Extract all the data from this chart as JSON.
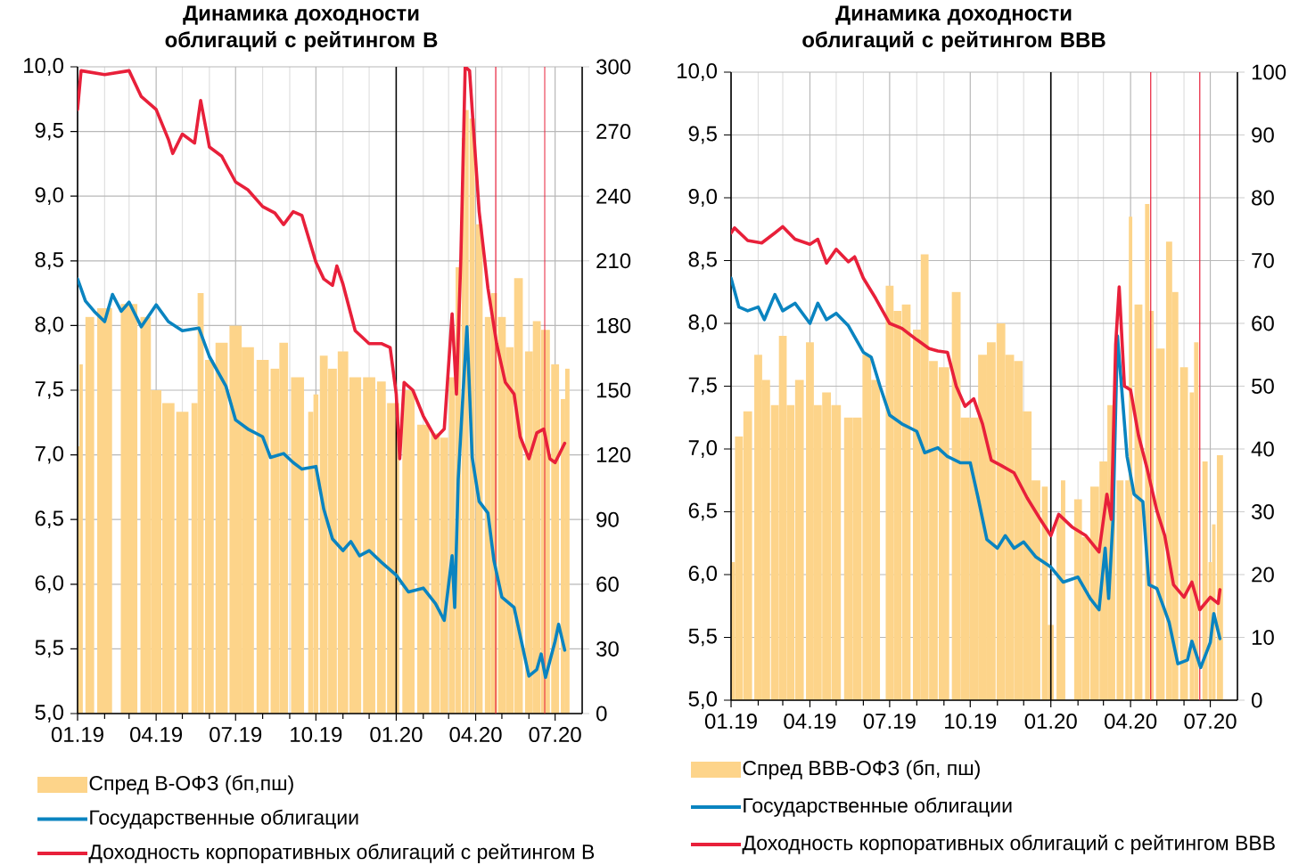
{
  "chart_data": [
    {
      "type": "line",
      "title": "Динамика доходности облигаций с рейтингом B",
      "legend": "bottom",
      "grid": true,
      "xlim": [
        "2019-01-01",
        "2020-08-01"
      ],
      "ylim": [
        5,
        10
      ],
      "y2lim": [
        0,
        300
      ],
      "xticks": [
        {
          "value": "2019-01-01",
          "label": "01.19"
        },
        {
          "value": "2019-02-01",
          "label": null
        },
        {
          "value": "2019-03-01",
          "label": null
        },
        {
          "value": "2019-04-01",
          "label": "04.19"
        },
        {
          "value": "2019-05-01",
          "label": null
        },
        {
          "value": "2019-06-01",
          "label": null
        },
        {
          "value": "2019-07-01",
          "label": "07.19"
        },
        {
          "value": "2019-08-01",
          "label": null
        },
        {
          "value": "2019-09-01",
          "label": null
        },
        {
          "value": "2019-10-01",
          "label": "10.19"
        },
        {
          "value": "2019-11-01",
          "label": null
        },
        {
          "value": "2019-12-01",
          "label": null
        },
        {
          "value": "2020-01-01",
          "label": "01.20"
        },
        {
          "value": "2020-02-01",
          "label": null
        },
        {
          "value": "2020-03-01",
          "label": null
        },
        {
          "value": "2020-04-01",
          "label": "04.20"
        },
        {
          "value": "2020-05-01",
          "label": null
        },
        {
          "value": "2020-06-01",
          "label": null
        },
        {
          "value": "2020-07-01",
          "label": "07.20"
        }
      ],
      "yticks": [
        {
          "value": 5,
          "label": "5,0"
        },
        {
          "value": 5.5,
          "label": "5,5"
        },
        {
          "value": 6,
          "label": "6,0"
        },
        {
          "value": 6.5,
          "label": "6,5"
        },
        {
          "value": 7,
          "label": "7,0"
        },
        {
          "value": 7.5,
          "label": "7,5"
        },
        {
          "value": 8,
          "label": "8,0"
        },
        {
          "value": 8.5,
          "label": "8,5"
        },
        {
          "value": 9,
          "label": "9,0"
        },
        {
          "value": 9.5,
          "label": "9,5"
        },
        {
          "value": 10,
          "label": "10,0"
        }
      ],
      "y2ticks": [
        0,
        30,
        60,
        90,
        120,
        150,
        180,
        210,
        240,
        270,
        300
      ],
      "ref_lines": [
        {
          "axis": "x",
          "value": "2020-01-01",
          "color": "#000000"
        },
        {
          "axis": "x",
          "value": "2020-04-24",
          "color": "#e8203a"
        },
        {
          "axis": "x",
          "value": "2020-06-19",
          "color": "#e8203a"
        }
      ],
      "series": [
        {
          "name": "Спред B-ОФЗ (бп,пш)",
          "type": "bar",
          "axis": "y2",
          "color": "#fdd48a",
          "x": [
            "2019-01-01",
            "2019-01-05",
            "2019-01-15",
            "2019-02-01",
            "2019-03-01",
            "2019-03-20",
            "2019-04-01",
            "2019-04-15",
            "2019-05-01",
            "2019-05-15",
            "2019-05-22",
            "2019-06-01",
            "2019-06-15",
            "2019-07-01",
            "2019-07-15",
            "2019-08-01",
            "2019-08-15",
            "2019-08-25",
            "2019-09-10",
            "2019-09-25",
            "2019-10-01",
            "2019-10-10",
            "2019-10-20",
            "2019-11-01",
            "2019-11-15",
            "2019-12-01",
            "2019-12-15",
            "2019-12-25",
            "2020-01-01",
            "2020-01-15",
            "2020-02-01",
            "2020-02-15",
            "2020-02-25",
            "2020-03-05",
            "2020-03-12",
            "2020-03-18",
            "2020-03-22",
            "2020-03-28",
            "2020-04-05",
            "2020-04-15",
            "2020-04-22",
            "2020-05-01",
            "2020-05-10",
            "2020-05-20",
            "2020-06-01",
            "2020-06-10",
            "2020-06-20",
            "2020-07-01",
            "2020-07-10",
            "2020-07-15"
          ],
          "values": [
            124,
            162,
            184,
            188,
            190,
            184,
            150,
            144,
            140,
            144,
            195,
            164,
            172,
            180,
            170,
            164,
            160,
            172,
            156,
            140,
            148,
            166,
            160,
            168,
            156,
            156,
            154,
            144,
            144,
            150,
            134,
            130,
            128,
            156,
            207,
            267,
            280,
            276,
            227,
            184,
            195,
            184,
            170,
            202,
            168,
            182,
            178,
            162,
            146,
            160
          ]
        },
        {
          "name": "Государственные облигации",
          "color": "#0a84c0",
          "x": [
            "2019-01-01",
            "2019-01-10",
            "2019-01-20",
            "2019-02-01",
            "2019-02-10",
            "2019-02-20",
            "2019-03-01",
            "2019-03-15",
            "2019-04-01",
            "2019-04-15",
            "2019-05-01",
            "2019-05-20",
            "2019-06-01",
            "2019-06-20",
            "2019-07-01",
            "2019-07-15",
            "2019-08-01",
            "2019-08-10",
            "2019-08-25",
            "2019-09-05",
            "2019-09-15",
            "2019-10-01",
            "2019-10-10",
            "2019-10-20",
            "2019-11-01",
            "2019-11-10",
            "2019-11-20",
            "2019-12-01",
            "2019-12-15",
            "2020-01-01",
            "2020-01-15",
            "2020-02-01",
            "2020-02-15",
            "2020-02-25",
            "2020-03-05",
            "2020-03-08",
            "2020-03-12",
            "2020-03-18",
            "2020-03-22",
            "2020-03-28",
            "2020-04-05",
            "2020-04-15",
            "2020-04-22",
            "2020-05-01",
            "2020-05-15",
            "2020-06-01",
            "2020-06-10",
            "2020-06-15",
            "2020-06-20",
            "2020-07-01",
            "2020-07-05",
            "2020-07-12"
          ],
          "values": [
            8.36,
            8.19,
            8.11,
            8.03,
            8.24,
            8.11,
            8.18,
            7.99,
            8.16,
            8.03,
            7.96,
            7.98,
            7.76,
            7.53,
            7.27,
            7.2,
            7.14,
            6.98,
            7.01,
            6.94,
            6.89,
            6.91,
            6.58,
            6.35,
            6.26,
            6.33,
            6.22,
            6.26,
            6.17,
            6.07,
            5.94,
            5.97,
            5.85,
            5.72,
            6.22,
            5.82,
            6.81,
            7.53,
            7.99,
            6.98,
            6.64,
            6.55,
            6.18,
            5.9,
            5.82,
            5.29,
            5.34,
            5.46,
            5.28,
            5.56,
            5.69,
            5.49
          ]
        },
        {
          "name": "Доходность корпоративных облигаций с рейтингом B",
          "color": "#e8203a",
          "x": [
            "2019-01-01",
            "2019-01-05",
            "2019-02-01",
            "2019-03-01",
            "2019-03-15",
            "2019-04-01",
            "2019-04-15",
            "2019-04-20",
            "2019-05-01",
            "2019-05-15",
            "2019-05-22",
            "2019-06-01",
            "2019-06-15",
            "2019-07-01",
            "2019-07-15",
            "2019-08-01",
            "2019-08-15",
            "2019-08-25",
            "2019-09-05",
            "2019-09-15",
            "2019-10-01",
            "2019-10-10",
            "2019-10-20",
            "2019-10-25",
            "2019-11-01",
            "2019-11-15",
            "2019-12-01",
            "2019-12-15",
            "2019-12-25",
            "2020-01-01",
            "2020-01-05",
            "2020-01-10",
            "2020-01-20",
            "2020-02-01",
            "2020-02-15",
            "2020-02-25",
            "2020-03-05",
            "2020-03-10",
            "2020-03-15",
            "2020-03-20",
            "2020-03-25",
            "2020-03-28",
            "2020-04-05",
            "2020-04-15",
            "2020-04-25",
            "2020-05-05",
            "2020-05-15",
            "2020-05-22",
            "2020-06-01",
            "2020-06-10",
            "2020-06-18",
            "2020-06-25",
            "2020-07-01",
            "2020-07-12"
          ],
          "values": [
            9.67,
            9.97,
            9.94,
            9.97,
            9.77,
            9.67,
            9.44,
            9.33,
            9.48,
            9.41,
            9.74,
            9.38,
            9.31,
            9.11,
            9.05,
            8.92,
            8.87,
            8.78,
            8.88,
            8.85,
            8.49,
            8.36,
            8.31,
            8.46,
            8.32,
            7.96,
            7.86,
            7.86,
            7.83,
            7.47,
            6.97,
            7.56,
            7.5,
            7.3,
            7.13,
            7.2,
            8.09,
            7.47,
            8.52,
            10.0,
            9.97,
            9.67,
            8.88,
            8.29,
            7.86,
            7.56,
            7.47,
            7.14,
            6.97,
            7.17,
            7.2,
            6.97,
            6.94,
            7.09
          ]
        }
      ]
    },
    {
      "type": "line",
      "title": "Динамика доходности облигаций с рейтингом BBB",
      "legend": "bottom",
      "grid": true,
      "xlim": [
        "2019-01-01",
        "2020-08-01"
      ],
      "ylim": [
        5,
        10
      ],
      "y2lim": [
        0,
        100
      ],
      "xticks": [
        {
          "value": "2019-01-01",
          "label": "01.19"
        },
        {
          "value": "2019-02-01",
          "label": null
        },
        {
          "value": "2019-03-01",
          "label": null
        },
        {
          "value": "2019-04-01",
          "label": "04.19"
        },
        {
          "value": "2019-05-01",
          "label": null
        },
        {
          "value": "2019-06-01",
          "label": null
        },
        {
          "value": "2019-07-01",
          "label": "07.19"
        },
        {
          "value": "2019-08-01",
          "label": null
        },
        {
          "value": "2019-09-01",
          "label": null
        },
        {
          "value": "2019-10-01",
          "label": "10.19"
        },
        {
          "value": "2019-11-01",
          "label": null
        },
        {
          "value": "2019-12-01",
          "label": null
        },
        {
          "value": "2020-01-01",
          "label": "01.20"
        },
        {
          "value": "2020-02-01",
          "label": null
        },
        {
          "value": "2020-03-01",
          "label": null
        },
        {
          "value": "2020-04-01",
          "label": "04.20"
        },
        {
          "value": "2020-05-01",
          "label": null
        },
        {
          "value": "2020-06-01",
          "label": null
        },
        {
          "value": "2020-07-01",
          "label": "07.20"
        }
      ],
      "yticks": [
        {
          "value": 5,
          "label": "5,0"
        },
        {
          "value": 5.5,
          "label": "5,5"
        },
        {
          "value": 6,
          "label": "6,0"
        },
        {
          "value": 6.5,
          "label": "6,5"
        },
        {
          "value": 7,
          "label": "7,0"
        },
        {
          "value": 7.5,
          "label": "7,5"
        },
        {
          "value": 8,
          "label": "8,0"
        },
        {
          "value": 8.5,
          "label": "8,5"
        },
        {
          "value": 9,
          "label": "9,0"
        },
        {
          "value": 9.5,
          "label": "9,5"
        },
        {
          "value": 10,
          "label": "10,0"
        }
      ],
      "y2ticks": [
        0,
        10,
        20,
        30,
        40,
        50,
        60,
        70,
        80,
        90,
        100
      ],
      "ref_lines": [
        {
          "axis": "x",
          "value": "2020-01-01",
          "color": "#000000"
        },
        {
          "axis": "x",
          "value": "2020-04-24",
          "color": "#e8203a"
        },
        {
          "axis": "x",
          "value": "2020-06-19",
          "color": "#e8203a"
        }
      ],
      "series": [
        {
          "name": "Спред BBB-ОФЗ (бп, пш)",
          "type": "bar",
          "axis": "y2",
          "color": "#fdd48a",
          "x": [
            "2019-01-01",
            "2019-01-10",
            "2019-01-20",
            "2019-02-01",
            "2019-02-10",
            "2019-02-20",
            "2019-03-01",
            "2019-03-10",
            "2019-03-20",
            "2019-04-01",
            "2019-04-10",
            "2019-04-20",
            "2019-05-01",
            "2019-05-15",
            "2019-05-25",
            "2019-06-05",
            "2019-06-15",
            "2019-07-01",
            "2019-07-10",
            "2019-07-20",
            "2019-08-01",
            "2019-08-10",
            "2019-08-20",
            "2019-09-01",
            "2019-09-15",
            "2019-09-25",
            "2019-10-05",
            "2019-10-15",
            "2019-10-25",
            "2019-11-05",
            "2019-11-15",
            "2019-11-25",
            "2019-12-05",
            "2019-12-15",
            "2019-12-25",
            "2020-01-01",
            "2020-01-10",
            "2020-01-15",
            "2020-02-01",
            "2020-02-10",
            "2020-02-20",
            "2020-03-01",
            "2020-03-10",
            "2020-03-20",
            "2020-03-28",
            "2020-04-01",
            "2020-04-10",
            "2020-04-20",
            "2020-04-25",
            "2020-05-05",
            "2020-05-15",
            "2020-05-22",
            "2020-06-01",
            "2020-06-10",
            "2020-06-15",
            "2020-06-25",
            "2020-07-01",
            "2020-07-05",
            "2020-07-12"
          ],
          "values": [
            22,
            42,
            46,
            55,
            51,
            47,
            58,
            47,
            51,
            57,
            47,
            49,
            47,
            45,
            45,
            55,
            51,
            66,
            62,
            63,
            59,
            71,
            54,
            53,
            65,
            45,
            45,
            55,
            57,
            60,
            55,
            54,
            46,
            35,
            34,
            12,
            29,
            35,
            32,
            26,
            34,
            38,
            47,
            35,
            35,
            77,
            63,
            79,
            62,
            56,
            73,
            65,
            53,
            49,
            57,
            38,
            22,
            28,
            39
          ]
        },
        {
          "name": "Государственные облигации",
          "color": "#0a84c0",
          "x": [
            "2019-01-01",
            "2019-01-10",
            "2019-01-20",
            "2019-02-01",
            "2019-02-08",
            "2019-02-20",
            "2019-03-01",
            "2019-03-15",
            "2019-04-01",
            "2019-04-10",
            "2019-04-20",
            "2019-05-01",
            "2019-05-15",
            "2019-06-01",
            "2019-06-10",
            "2019-06-20",
            "2019-07-01",
            "2019-07-15",
            "2019-08-01",
            "2019-08-10",
            "2019-08-25",
            "2019-09-05",
            "2019-09-20",
            "2019-10-01",
            "2019-10-10",
            "2019-10-20",
            "2019-11-01",
            "2019-11-10",
            "2019-11-20",
            "2019-12-01",
            "2019-12-15",
            "2020-01-01",
            "2020-01-15",
            "2020-02-01",
            "2020-02-15",
            "2020-02-25",
            "2020-03-03",
            "2020-03-07",
            "2020-03-12",
            "2020-03-17",
            "2020-03-22",
            "2020-03-28",
            "2020-04-05",
            "2020-04-15",
            "2020-04-22",
            "2020-05-01",
            "2020-05-15",
            "2020-05-25",
            "2020-06-05",
            "2020-06-10",
            "2020-06-20",
            "2020-07-01",
            "2020-07-05",
            "2020-07-12"
          ],
          "values": [
            8.36,
            8.13,
            8.1,
            8.13,
            8.03,
            8.23,
            8.1,
            8.16,
            8.0,
            8.16,
            8.03,
            8.08,
            7.98,
            7.77,
            7.73,
            7.5,
            7.27,
            7.2,
            7.14,
            6.97,
            7.01,
            6.94,
            6.89,
            6.89,
            6.61,
            6.28,
            6.21,
            6.31,
            6.21,
            6.26,
            6.14,
            6.06,
            5.94,
            5.98,
            5.81,
            5.72,
            6.21,
            5.81,
            6.44,
            7.9,
            7.47,
            6.94,
            6.64,
            6.58,
            5.92,
            5.89,
            5.62,
            5.29,
            5.32,
            5.47,
            5.26,
            5.46,
            5.69,
            5.49
          ]
        },
        {
          "name": "Доходность корпоративных облигаций с рейтингом BBB",
          "color": "#e8203a",
          "x": [
            "2019-01-01",
            "2019-01-05",
            "2019-01-20",
            "2019-02-05",
            "2019-02-20",
            "2019-03-01",
            "2019-03-15",
            "2019-04-01",
            "2019-04-10",
            "2019-04-20",
            "2019-05-01",
            "2019-05-15",
            "2019-05-22",
            "2019-06-01",
            "2019-06-15",
            "2019-07-01",
            "2019-07-15",
            "2019-08-01",
            "2019-08-15",
            "2019-08-25",
            "2019-09-05",
            "2019-09-15",
            "2019-09-25",
            "2019-10-05",
            "2019-10-15",
            "2019-10-25",
            "2019-11-05",
            "2019-11-20",
            "2019-12-05",
            "2019-12-20",
            "2020-01-01",
            "2020-01-10",
            "2020-01-25",
            "2020-02-10",
            "2020-02-25",
            "2020-03-05",
            "2020-03-10",
            "2020-03-15",
            "2020-03-19",
            "2020-03-25",
            "2020-04-01",
            "2020-04-10",
            "2020-04-20",
            "2020-05-01",
            "2020-05-10",
            "2020-05-20",
            "2020-06-01",
            "2020-06-10",
            "2020-06-19",
            "2020-07-01",
            "2020-07-10",
            "2020-07-12"
          ],
          "values": [
            8.72,
            8.76,
            8.66,
            8.64,
            8.72,
            8.77,
            8.67,
            8.63,
            8.67,
            8.48,
            8.59,
            8.49,
            8.53,
            8.36,
            8.2,
            8.0,
            7.96,
            7.87,
            7.8,
            7.78,
            7.77,
            7.5,
            7.34,
            7.4,
            7.2,
            6.91,
            6.87,
            6.81,
            6.61,
            6.44,
            6.31,
            6.48,
            6.38,
            6.31,
            6.18,
            6.64,
            6.44,
            7.83,
            8.29,
            7.5,
            7.47,
            7.11,
            6.84,
            6.51,
            6.31,
            5.92,
            5.82,
            5.94,
            5.72,
            5.82,
            5.77,
            5.88
          ]
        }
      ]
    }
  ]
}
